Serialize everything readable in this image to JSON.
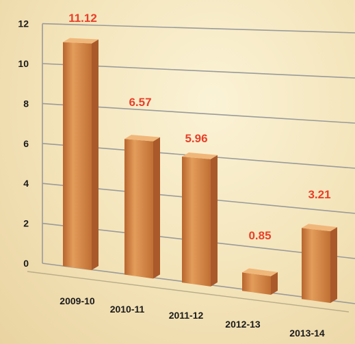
{
  "chart_data": {
    "type": "bar",
    "title": "",
    "xlabel": "",
    "ylabel": "",
    "categories": [
      "2009-10",
      "2010-11",
      "2011-12",
      "2012-13",
      "2013-14"
    ],
    "values": [
      11.12,
      6.57,
      5.96,
      0.85,
      3.21
    ],
    "value_labels": [
      "11.12",
      "6.57",
      "5.96",
      "0.85",
      "3.21"
    ],
    "ylim": [
      0,
      12
    ],
    "yticks": [
      "0",
      "2",
      "4",
      "6",
      "8",
      "10",
      "12"
    ],
    "grid": true,
    "legend": "none",
    "colors": {
      "bar_front": "#cc7a38",
      "bar_light": "#e09a55",
      "bar_top": "#f0b77a",
      "bar_side": "#a9592a",
      "value_label": "#e8402a",
      "gridline": "#9a9a9a",
      "axis_text": "#1a1a1a"
    }
  }
}
